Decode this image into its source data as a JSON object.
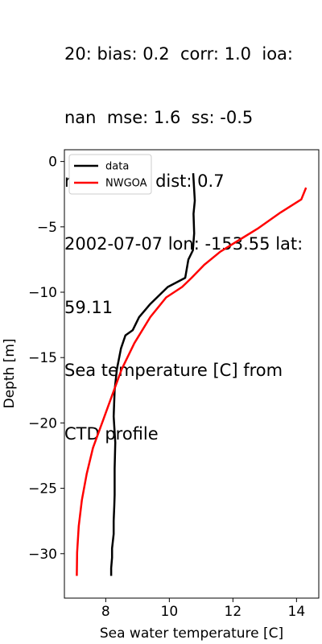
{
  "chart_data": {
    "type": "line",
    "title_lines": [
      "20: bias: 0.2  corr: 1.0  ioa:",
      "nan  mse: 1.6  ss: -0.5",
      "rmse: 1.3  dist: 0.7",
      "2002-07-07 lon: -153.55 lat:",
      "59.11",
      "Sea temperature [C] from",
      "CTD profile"
    ],
    "xlabel": "Sea water temperature [C]",
    "ylabel": "Depth [m]",
    "xlim": [
      6.7,
      14.7
    ],
    "ylim": [
      -33.4,
      0.9
    ],
    "xticks": [
      8,
      10,
      12,
      14
    ],
    "yticks": [
      0,
      -5,
      -10,
      -15,
      -20,
      -25,
      -30
    ],
    "xtick_labels": [
      "8",
      "10",
      "12",
      "14"
    ],
    "ytick_labels": [
      "0",
      "−5",
      "−10",
      "−15",
      "−20",
      "−25",
      "−30"
    ],
    "grid": false,
    "legend_position": "top-left",
    "series": [
      {
        "name": "data",
        "color": "#000000",
        "x": [
          10.75,
          10.8,
          10.76,
          10.78,
          10.74,
          10.6,
          10.5,
          9.95,
          9.4,
          9.05,
          8.85,
          8.62,
          8.48,
          8.35,
          8.28,
          8.25,
          8.3,
          8.28,
          8.28,
          8.27,
          8.25,
          8.25,
          8.2,
          8.2,
          8.17,
          8.17
        ],
        "y": [
          -0.9,
          -3.0,
          -4.0,
          -5.5,
          -6.8,
          -7.5,
          -8.9,
          -9.6,
          -10.9,
          -11.9,
          -12.9,
          -13.3,
          -14.3,
          -15.9,
          -17.5,
          -19.5,
          -21.5,
          -23.5,
          -25.5,
          -26.3,
          -27.5,
          -28.5,
          -29.6,
          -30.3,
          -31.1,
          -31.7
        ]
      },
      {
        "name": "NWGOA",
        "color": "#ff0000",
        "x": [
          14.3,
          14.15,
          13.5,
          12.8,
          12.2,
          11.6,
          11.1,
          10.7,
          10.4,
          9.9,
          9.4,
          8.9,
          8.5,
          8.2,
          7.9,
          7.6,
          7.4,
          7.25,
          7.15,
          7.1,
          7.09
        ],
        "y": [
          -2.0,
          -2.9,
          -3.9,
          -5.1,
          -6.0,
          -6.9,
          -7.9,
          -8.9,
          -9.6,
          -10.4,
          -11.9,
          -13.9,
          -15.9,
          -17.9,
          -19.9,
          -21.9,
          -23.9,
          -25.9,
          -27.9,
          -29.9,
          -31.7
        ]
      }
    ]
  }
}
